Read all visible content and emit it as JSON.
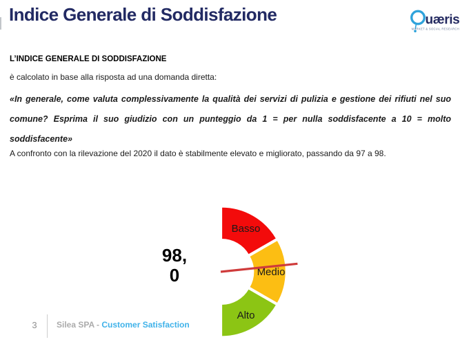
{
  "slide": {
    "title": "Indice Generale di Soddisfazione",
    "page_number": "3"
  },
  "logo": {
    "brand": "Quaeris",
    "wordmark_rest": "uæris",
    "tagline": "MARKET & SOCIAL RESEARCH",
    "q_color": "#2fa3db",
    "text_color": "#232960"
  },
  "body": {
    "heading": "L’INDICE GENERALE DI SODDISFAZIONE",
    "intro": "è calcolato in base alla risposta ad una domanda diretta:",
    "quote": "«In generale, come valuta complessivamente la qualità dei servizi di pulizia e gestione dei rifiuti nel suo comune? Esprima il suo giudizio con un punteggio da 1 = per nulla soddisfacente a 10 = molto soddisfacente»",
    "comparison": "A confronto con la rilevazione del 2020 il dato è stabilmente elevato e migliorato, passando da 97 a 98."
  },
  "chart_data": {
    "type": "gauge",
    "title": "",
    "value": 98.0,
    "value_display_lines": [
      "98,",
      "0"
    ],
    "segments": [
      {
        "label": "Basso",
        "color": "#f30b0b"
      },
      {
        "label": "Medio",
        "color": "#fcbe13"
      },
      {
        "label": "Alto",
        "color": "#8cc514"
      }
    ],
    "start_angle_deg": 0,
    "end_angle_deg": 180,
    "needle": {
      "angle_deg": 84,
      "color": "#cf3b3b"
    },
    "layout_hint": "right-facing half doughnut, Basso top / Medio right / Alto bottom, needle pointing right"
  },
  "footer": {
    "company": "Silea SPA - ",
    "report": "Customer Satisfaction"
  }
}
